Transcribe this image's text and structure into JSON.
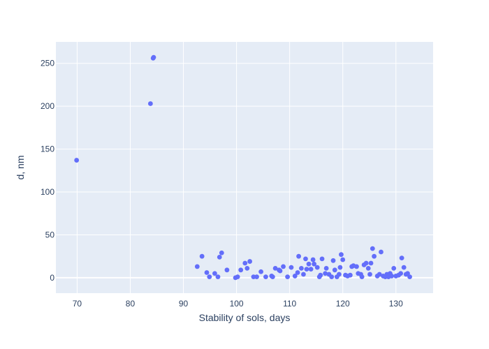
{
  "chart_data": {
    "type": "scatter",
    "title": "",
    "xlabel": "Stability of sols, days",
    "ylabel": "d, nm",
    "xlim": [
      66,
      137
    ],
    "ylim": [
      -18,
      275
    ],
    "x_ticks": [
      70,
      80,
      90,
      100,
      110,
      120,
      130
    ],
    "y_ticks": [
      0,
      50,
      100,
      150,
      200,
      250
    ],
    "grid": true,
    "legend": "none",
    "colors": {
      "plot_bg": "#e5ecf6",
      "grid": "#ffffff",
      "marker": "#636efa",
      "text": "#2a3f5f"
    },
    "series": [
      {
        "x": [
          69.9,
          83.8,
          84.3,
          84.4,
          92.6,
          93.5,
          94.4,
          94.9,
          95.9,
          96.5,
          96.8,
          97.2,
          98.2,
          99.8,
          100.2,
          100.8,
          101.6,
          102.0,
          102.5,
          103.2,
          103.8,
          104.6,
          105.5,
          106.6,
          106.8,
          107.3,
          108.0,
          108.2,
          108.8,
          109.6,
          110.3,
          111.0,
          111.5,
          111.7,
          112.2,
          112.6,
          113.0,
          113.2,
          113.6,
          114.0,
          114.4,
          114.6,
          115.2,
          115.6,
          115.8,
          116.1,
          116.7,
          116.9,
          117.4,
          117.9,
          118.2,
          118.5,
          118.9,
          119.3,
          119.5,
          119.7,
          120.0,
          120.5,
          120.9,
          121.4,
          121.7,
          122.0,
          122.6,
          122.9,
          123.4,
          123.6,
          124.0,
          124.4,
          124.8,
          125.1,
          125.3,
          125.6,
          125.9,
          126.5,
          126.9,
          127.2,
          127.6,
          128.0,
          128.3,
          128.6,
          128.9,
          129.2,
          129.6,
          130.0,
          130.5,
          130.9,
          131.1,
          131.5,
          131.9,
          132.2,
          132.6
        ],
        "y": [
          137,
          203,
          256,
          257,
          13,
          25,
          6,
          1,
          5,
          1,
          24,
          29,
          9,
          0,
          1,
          9,
          17,
          11,
          19,
          1,
          1,
          7,
          1,
          2,
          1,
          11,
          9,
          8,
          13,
          1,
          12,
          2,
          6,
          25,
          11,
          4,
          22,
          10,
          16,
          10,
          21,
          16,
          12,
          1,
          3,
          22,
          5,
          11,
          4,
          1,
          20,
          9,
          1,
          4,
          12,
          27,
          21,
          3,
          2,
          3,
          13,
          14,
          13,
          5,
          4,
          1,
          15,
          17,
          11,
          4,
          17,
          34,
          25,
          2,
          4,
          30,
          2,
          1,
          4,
          1,
          5,
          2,
          11,
          2,
          3,
          5,
          23,
          12,
          4,
          5,
          1
        ]
      }
    ]
  }
}
